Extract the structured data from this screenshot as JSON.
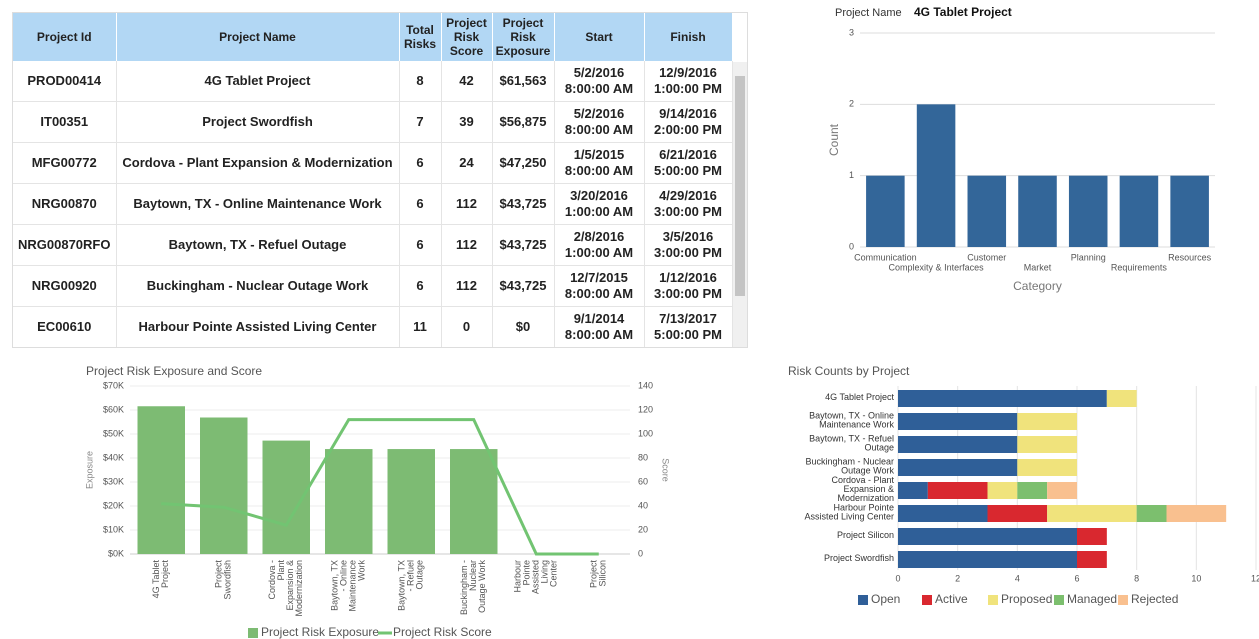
{
  "table": {
    "columns": [
      "Project Id",
      "Project Name",
      "Total Risks",
      "Project Risk Score",
      "Project Risk Exposure",
      "Start",
      "Finish"
    ],
    "rows": [
      [
        "PROD00414",
        "4G Tablet Project",
        "8",
        "42",
        "$61,563",
        "5/2/2016 8:00:00 AM",
        "12/9/2016 1:00:00 PM"
      ],
      [
        "IT00351",
        "Project Swordfish",
        "7",
        "39",
        "$56,875",
        "5/2/2016 8:00:00 AM",
        "9/14/2016 2:00:00 PM"
      ],
      [
        "MFG00772",
        "Cordova - Plant Expansion & Modernization",
        "6",
        "24",
        "$47,250",
        "1/5/2015 8:00:00 AM",
        "6/21/2016 5:00:00 PM"
      ],
      [
        "NRG00870",
        "Baytown, TX - Online Maintenance Work",
        "6",
        "112",
        "$43,725",
        "3/20/2016 1:00:00 AM",
        "4/29/2016 3:00:00 PM"
      ],
      [
        "NRG00870RFO",
        "Baytown, TX - Refuel Outage",
        "6",
        "112",
        "$43,725",
        "2/8/2016 1:00:00 AM",
        "3/5/2016 3:00:00 PM"
      ],
      [
        "NRG00920",
        "Buckingham - Nuclear Outage Work",
        "6",
        "112",
        "$43,725",
        "12/7/2015 8:00:00 AM",
        "1/12/2016 3:00:00 PM"
      ],
      [
        "EC00610",
        "Harbour Pointe Assisted Living Center",
        "11",
        "0",
        "$0",
        "9/1/2014 8:00:00 AM",
        "7/13/2017 5:00:00 PM"
      ]
    ]
  },
  "chart_data": [
    {
      "type": "bar",
      "title": "Project Name",
      "subtitle": "4G Tablet Project",
      "categories": [
        "Communication",
        "Complexity & Interfaces",
        "Customer",
        "Market",
        "Planning",
        "Requirements",
        "Resources"
      ],
      "values": [
        1,
        2,
        1,
        1,
        1,
        1,
        1
      ],
      "color": "#336699",
      "ylim": [
        0,
        3
      ],
      "yticks": [
        0,
        1,
        2,
        3
      ],
      "grid": true,
      "x_label": "Category",
      "y_label": "Count"
    },
    {
      "type": "combo",
      "title": "Project Risk Exposure and Score",
      "categories": [
        "4G Tablet Project",
        "Project Swordfish",
        "Cordova - Plant Expansion & Modernization",
        "Baytown, TX - Online Maintenance Work",
        "Baytown, TX - Refuel Outage",
        "Buckingham - Nuclear Outage Work",
        "Harbour Pointe Assisted Living Center",
        "Project Silicon"
      ],
      "series": [
        {
          "name": "Project Risk Exposure",
          "color": "#7dbb73",
          "kind": "bar",
          "values": [
            61563,
            56875,
            47250,
            43725,
            43725,
            43725,
            0,
            0
          ]
        },
        {
          "name": "Project Risk Score",
          "color": "#72c472",
          "kind": "line",
          "axis": "y2",
          "values": [
            42,
            39,
            24,
            112,
            112,
            112,
            0,
            0
          ]
        }
      ],
      "ylim": [
        0,
        70000
      ],
      "yticks": [
        {
          "value": 0,
          "label": "$0K"
        },
        {
          "value": 10000,
          "label": "$10K"
        },
        {
          "value": 20000,
          "label": "$20K"
        },
        {
          "value": 30000,
          "label": "$30K"
        },
        {
          "value": 40000,
          "label": "$40K"
        },
        {
          "value": 50000,
          "label": "$50K"
        },
        {
          "value": 60000,
          "label": "$60K"
        },
        {
          "value": 70000,
          "label": "$70K"
        }
      ],
      "y2lim": [
        0,
        140
      ],
      "y2ticks": [
        0,
        20,
        40,
        60,
        80,
        100,
        120,
        140
      ],
      "y_label": "Exposure",
      "y2_label": "Score",
      "grid": true,
      "legend": "bottom"
    },
    {
      "type": "stacked_barh",
      "title": "Risk Counts by Project",
      "categories": [
        "4G Tablet Project",
        "Baytown, TX - Online Maintenance Work",
        "Baytown, TX - Refuel Outage",
        "Buckingham - Nuclear Outage Work",
        "Cordova - Plant Expansion & Modernization",
        "Harbour Pointe Assisted Living Center",
        "Project Silicon",
        "Project Swordfish"
      ],
      "series": [
        {
          "name": "Open",
          "color": "#2f5f98",
          "values": [
            7,
            4,
            4,
            4,
            1,
            3,
            6,
            6
          ]
        },
        {
          "name": "Active",
          "color": "#d9282f",
          "values": [
            0,
            0,
            0,
            0,
            2,
            2,
            1,
            1
          ]
        },
        {
          "name": "Proposed",
          "color": "#f0e37c",
          "values": [
            1,
            2,
            2,
            2,
            1,
            3,
            0,
            0
          ]
        },
        {
          "name": "Managed",
          "color": "#7cbf6e",
          "values": [
            0,
            0,
            0,
            0,
            1,
            1,
            0,
            0
          ]
        },
        {
          "name": "Rejected",
          "color": "#f9c08f",
          "values": [
            0,
            0,
            0,
            0,
            1,
            2,
            0,
            0
          ]
        }
      ],
      "xlim": [
        0,
        12
      ],
      "xticks": [
        0,
        2,
        4,
        6,
        8,
        10,
        12
      ],
      "grid": true,
      "legend": "bottom"
    }
  ]
}
